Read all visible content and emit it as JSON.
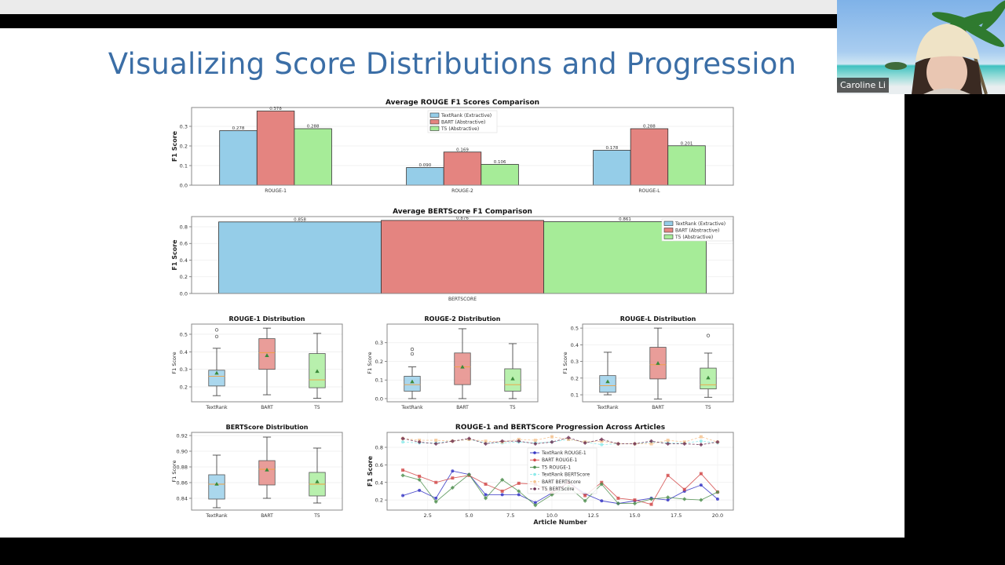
{
  "slide": {
    "title": "Visualizing Score Distributions and Progression"
  },
  "participant": {
    "name": "Caroline Li"
  },
  "colors": {
    "title": "#3b6ea6",
    "textrank": "#95cde8",
    "bart": "#e48480",
    "t5": "#a6ec98",
    "median": "#f0a040",
    "mean": "#3a8a3a",
    "line_textrank": "#3434c4",
    "line_bart": "#d24848",
    "line_t5": "#4f8f4f",
    "line_textrank_bert": "#8ceaea",
    "line_bart_bert": "#f4c28e",
    "line_t5_bert": "#6e2f52"
  },
  "chart_data": [
    {
      "type": "bar",
      "title": "Average ROUGE F1 Scores Comparison",
      "xlabel": "",
      "ylabel": "F1 Score",
      "categories": [
        "ROUGE-1",
        "ROUGE-2",
        "ROUGE-L"
      ],
      "series": [
        {
          "name": "TextRank (Extractive)",
          "values": [
            0.278,
            0.09,
            0.178
          ]
        },
        {
          "name": "BART (Abstractive)",
          "values": [
            0.378,
            0.169,
            0.288
          ]
        },
        {
          "name": "T5 (Abstractive)",
          "values": [
            0.288,
            0.106,
            0.201
          ]
        }
      ],
      "ylim": [
        0,
        0.396
      ],
      "yticks": [
        "0.0",
        "0.1",
        "0.2",
        "0.3"
      ],
      "grid": true,
      "legend": "top-center",
      "data_labels": true
    },
    {
      "type": "bar",
      "title": "Average BERTScore F1 Comparison",
      "xlabel": "",
      "ylabel": "F1 Score",
      "categories": [
        "BERTSCORE"
      ],
      "series": [
        {
          "name": "TextRank (Extractive)",
          "values": [
            0.858
          ]
        },
        {
          "name": "BART (Abstractive)",
          "values": [
            0.876
          ]
        },
        {
          "name": "T5 (Abstractive)",
          "values": [
            0.861
          ]
        }
      ],
      "ylim": [
        0,
        0.922
      ],
      "yticks": [
        "0.0",
        "0.2",
        "0.4",
        "0.6",
        "0.8"
      ],
      "grid": true,
      "legend": "top-right",
      "data_labels": true
    },
    {
      "type": "box",
      "title": "ROUGE-1 Distribution",
      "ylabel": "F1 Score",
      "categories": [
        "TextRank",
        "BART",
        "T5"
      ],
      "boxes": [
        {
          "whislo": 0.15,
          "q1": 0.205,
          "med": 0.26,
          "q3": 0.295,
          "whishi": 0.42,
          "mean": 0.278,
          "fliers": [
            0.487,
            0.525
          ]
        },
        {
          "whislo": 0.155,
          "q1": 0.3,
          "med": 0.395,
          "q3": 0.475,
          "whishi": 0.535,
          "mean": 0.378,
          "fliers": []
        },
        {
          "whislo": 0.135,
          "q1": 0.195,
          "med": 0.24,
          "q3": 0.39,
          "whishi": 0.505,
          "mean": 0.288,
          "fliers": []
        }
      ],
      "ylim": [
        0.115,
        0.558
      ],
      "yticks": [
        "0.2",
        "0.3",
        "0.4",
        "0.5"
      ],
      "grid": true
    },
    {
      "type": "box",
      "title": "ROUGE-2 Distribution",
      "ylabel": "F1 Score",
      "categories": [
        "TextRank",
        "BART",
        "T5"
      ],
      "boxes": [
        {
          "whislo": 0.0,
          "q1": 0.04,
          "med": 0.075,
          "q3": 0.12,
          "whishi": 0.17,
          "mean": 0.09,
          "fliers": [
            0.24,
            0.265
          ]
        },
        {
          "whislo": 0.0,
          "q1": 0.075,
          "med": 0.17,
          "q3": 0.245,
          "whishi": 0.375,
          "mean": 0.169,
          "fliers": []
        },
        {
          "whislo": 0.0,
          "q1": 0.04,
          "med": 0.075,
          "q3": 0.16,
          "whishi": 0.295,
          "mean": 0.106,
          "fliers": []
        }
      ],
      "ylim": [
        -0.017,
        0.4
      ],
      "yticks": [
        "0.0",
        "0.1",
        "0.2",
        "0.3"
      ],
      "grid": true
    },
    {
      "type": "box",
      "title": "ROUGE-L Distribution",
      "ylabel": "F1 Score",
      "categories": [
        "TextRank",
        "BART",
        "T5"
      ],
      "boxes": [
        {
          "whislo": 0.1,
          "q1": 0.115,
          "med": 0.155,
          "q3": 0.215,
          "whishi": 0.355,
          "mean": 0.178,
          "fliers": []
        },
        {
          "whislo": 0.075,
          "q1": 0.195,
          "med": 0.28,
          "q3": 0.385,
          "whishi": 0.5,
          "mean": 0.288,
          "fliers": []
        },
        {
          "whislo": 0.085,
          "q1": 0.135,
          "med": 0.16,
          "q3": 0.26,
          "whishi": 0.35,
          "mean": 0.201,
          "fliers": [
            0.455
          ]
        }
      ],
      "ylim": [
        0.058,
        0.524
      ],
      "yticks": [
        "0.1",
        "0.2",
        "0.3",
        "0.4",
        "0.5"
      ],
      "grid": true
    },
    {
      "type": "box",
      "title": "BERTScore Distribution",
      "ylabel": "F1 Score",
      "categories": [
        "TextRank",
        "BART",
        "T5"
      ],
      "boxes": [
        {
          "whislo": 0.828,
          "q1": 0.839,
          "med": 0.858,
          "q3": 0.87,
          "whishi": 0.895,
          "mean": 0.858,
          "fliers": []
        },
        {
          "whislo": 0.84,
          "q1": 0.857,
          "med": 0.877,
          "q3": 0.888,
          "whishi": 0.918,
          "mean": 0.876,
          "fliers": []
        },
        {
          "whislo": 0.834,
          "q1": 0.843,
          "med": 0.858,
          "q3": 0.873,
          "whishi": 0.904,
          "mean": 0.861,
          "fliers": []
        }
      ],
      "ylim": [
        0.825,
        0.924
      ],
      "yticks": [
        "0.84",
        "0.86",
        "0.88",
        "0.90",
        "0.92"
      ],
      "grid": true
    },
    {
      "type": "line",
      "title": "ROUGE-1 and BERTScore Progression Across Articles",
      "xlabel": "Article Number",
      "ylabel": "F1 Score",
      "x": [
        1,
        2,
        3,
        4,
        5,
        6,
        7,
        8,
        9,
        10,
        11,
        12,
        13,
        14,
        15,
        16,
        17,
        18,
        19,
        20
      ],
      "series": [
        {
          "name": "TextRank ROUGE-1",
          "values": [
            0.25,
            0.31,
            0.22,
            0.53,
            0.49,
            0.26,
            0.26,
            0.26,
            0.17,
            0.28,
            0.4,
            0.27,
            0.19,
            0.16,
            0.19,
            0.22,
            0.2,
            0.3,
            0.37,
            0.21
          ],
          "style": "solid",
          "marker": "circle"
        },
        {
          "name": "BART ROUGE-1",
          "values": [
            0.54,
            0.47,
            0.4,
            0.45,
            0.48,
            0.38,
            0.3,
            0.39,
            0.38,
            0.28,
            0.4,
            0.25,
            0.4,
            0.22,
            0.2,
            0.15,
            0.48,
            0.32,
            0.5,
            0.29
          ],
          "style": "solid",
          "marker": "square"
        },
        {
          "name": "T5 ROUGE-1",
          "values": [
            0.48,
            0.43,
            0.18,
            0.34,
            0.49,
            0.22,
            0.43,
            0.3,
            0.14,
            0.26,
            0.35,
            0.19,
            0.38,
            0.16,
            0.16,
            0.21,
            0.23,
            0.21,
            0.2,
            0.29
          ],
          "style": "solid",
          "marker": "diamond"
        },
        {
          "name": "TextRank BERTScore",
          "values": [
            0.86,
            0.85,
            0.85,
            0.87,
            0.89,
            0.85,
            0.85,
            0.86,
            0.85,
            0.86,
            0.89,
            0.86,
            0.83,
            0.84,
            0.84,
            0.86,
            0.85,
            0.85,
            0.87,
            0.85
          ],
          "style": "dashed",
          "marker": "circle"
        },
        {
          "name": "BART BERTScore",
          "values": [
            0.9,
            0.88,
            0.88,
            0.87,
            0.89,
            0.87,
            0.86,
            0.89,
            0.88,
            0.92,
            0.89,
            0.86,
            0.87,
            0.84,
            0.84,
            0.84,
            0.88,
            0.86,
            0.92,
            0.86
          ],
          "style": "dashed",
          "marker": "square"
        },
        {
          "name": "T5 BERTScore",
          "values": [
            0.9,
            0.86,
            0.84,
            0.87,
            0.9,
            0.84,
            0.87,
            0.87,
            0.84,
            0.86,
            0.91,
            0.85,
            0.89,
            0.84,
            0.84,
            0.87,
            0.84,
            0.84,
            0.83,
            0.86
          ],
          "style": "dashed",
          "marker": "diamond"
        }
      ],
      "xlim": [
        0.05,
        20.95
      ],
      "ylim": [
        0.085,
        0.97
      ],
      "xticks": [
        "2.5",
        "5.0",
        "7.5",
        "10.0",
        "12.5",
        "15.0",
        "17.5",
        "20.0"
      ],
      "yticks": [
        "0.2",
        "0.4",
        "0.6",
        "0.8"
      ],
      "grid": true,
      "legend": "center"
    }
  ]
}
